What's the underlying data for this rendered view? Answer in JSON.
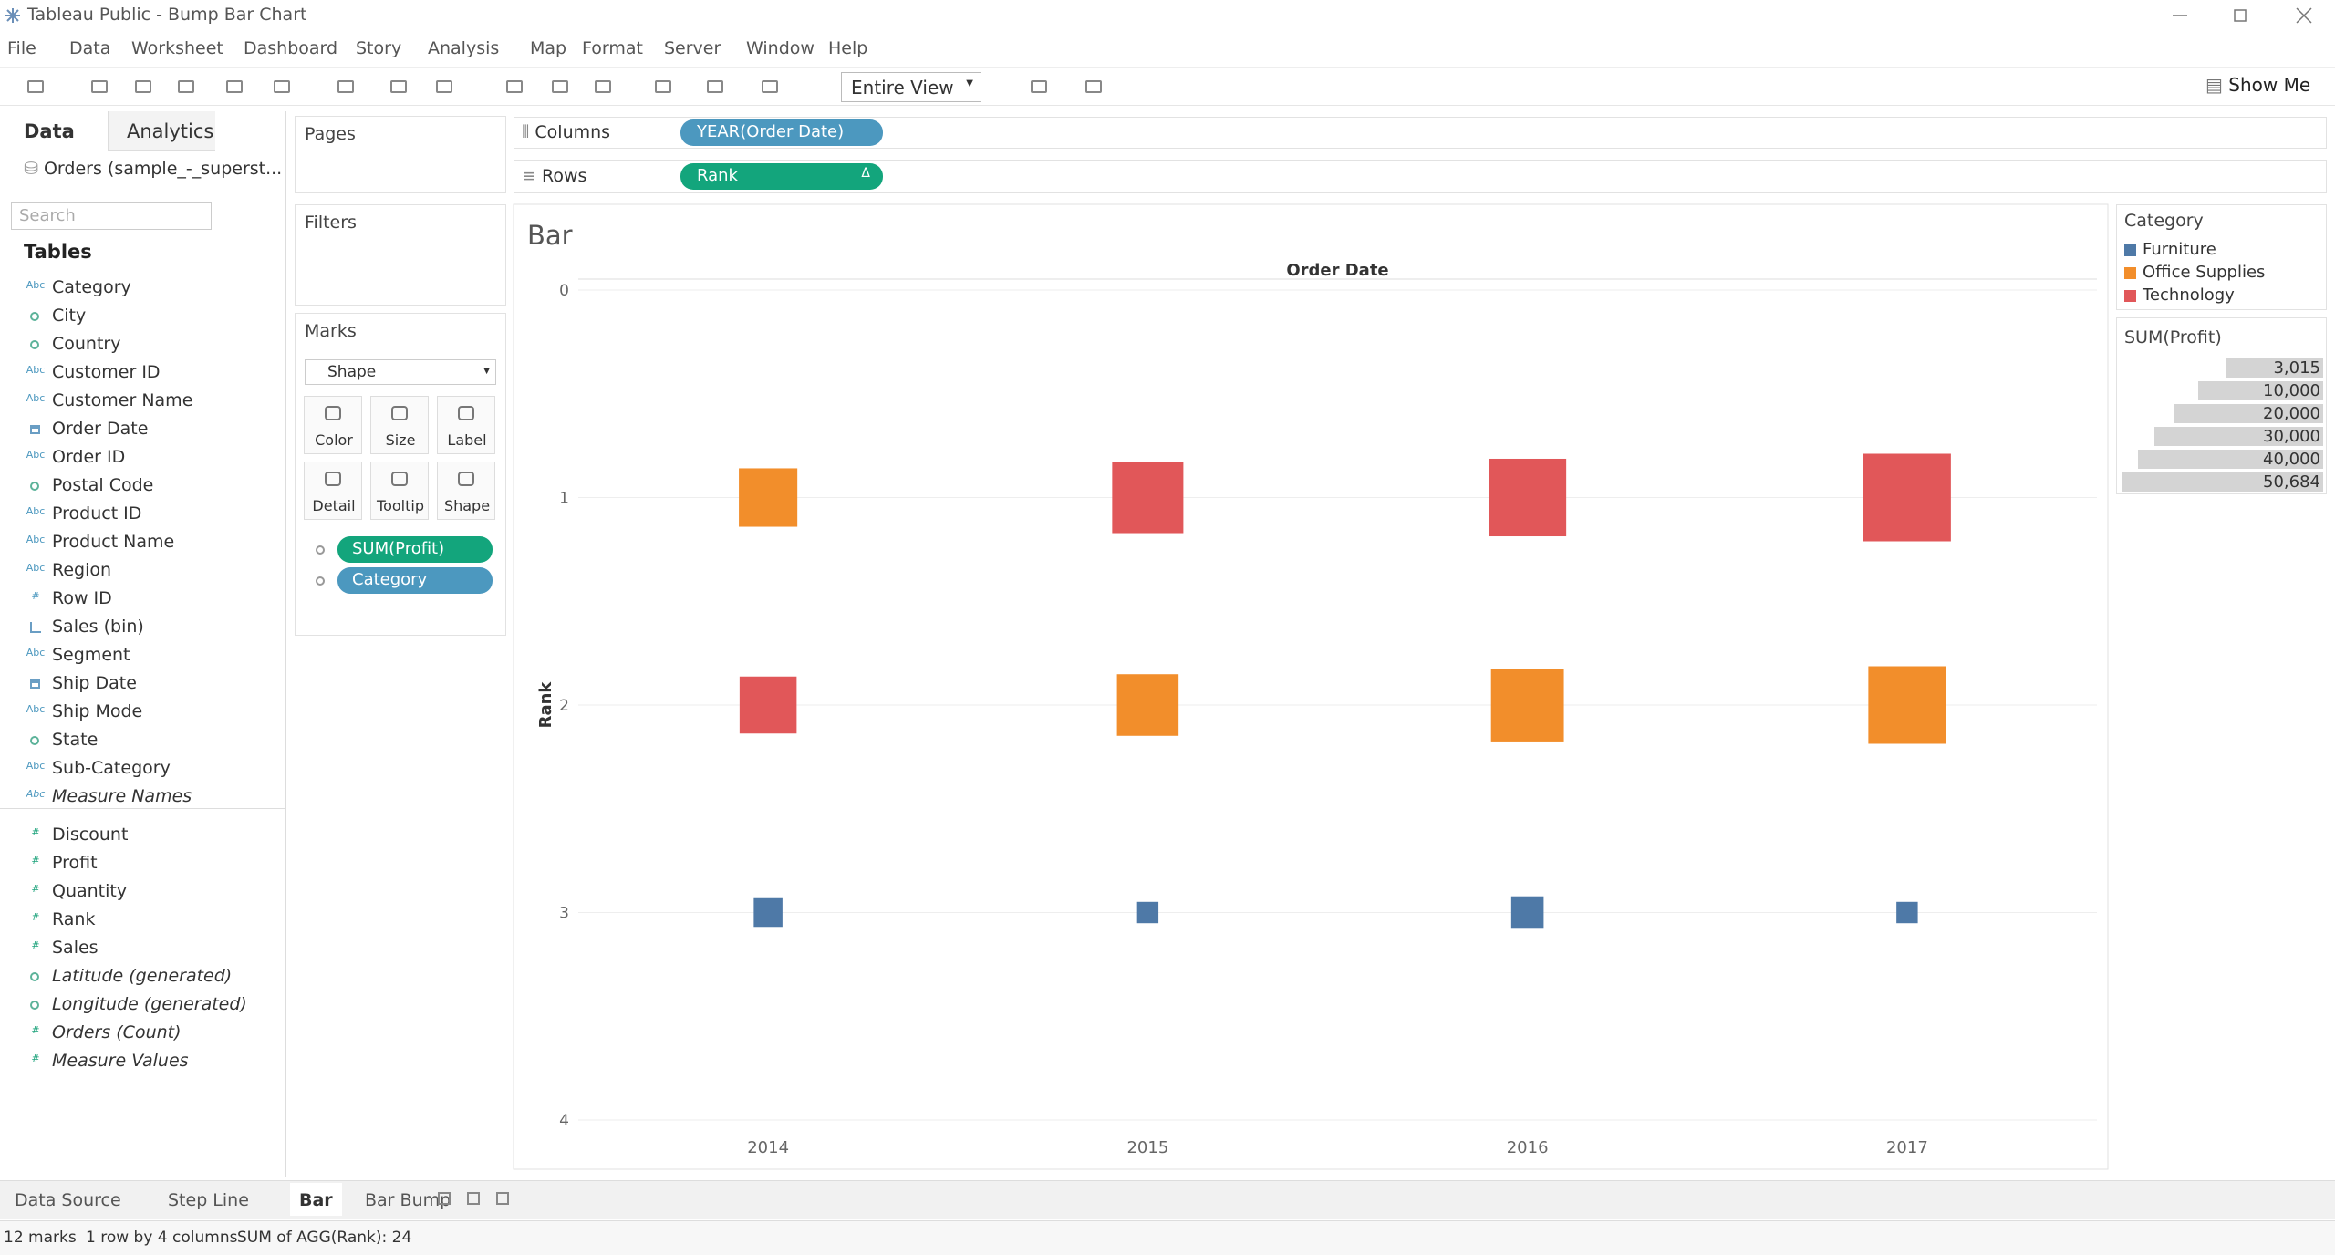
{
  "window": {
    "title": "Tableau Public - Bump Bar Chart",
    "menu": [
      "File",
      "Data",
      "Worksheet",
      "Dashboard",
      "Story",
      "Analysis",
      "Map",
      "Format",
      "Server",
      "Window",
      "Help"
    ]
  },
  "toolbar": {
    "fit": "Entire View",
    "show_me": "Show Me"
  },
  "data_pane": {
    "tabs": [
      "Data",
      "Analytics"
    ],
    "source": "Orders (sample_-_superst...",
    "search_placeholder": "Search",
    "heading": "Tables",
    "dimensions": [
      {
        "name": "Category",
        "icon": "Abc"
      },
      {
        "name": "City",
        "icon": "geo"
      },
      {
        "name": "Country",
        "icon": "geo"
      },
      {
        "name": "Customer ID",
        "icon": "Abc"
      },
      {
        "name": "Customer Name",
        "icon": "Abc"
      },
      {
        "name": "Order Date",
        "icon": "date"
      },
      {
        "name": "Order ID",
        "icon": "Abc"
      },
      {
        "name": "Postal Code",
        "icon": "geo"
      },
      {
        "name": "Product ID",
        "icon": "Abc"
      },
      {
        "name": "Product Name",
        "icon": "Abc"
      },
      {
        "name": "Region",
        "icon": "Abc"
      },
      {
        "name": "Row ID",
        "icon": "#"
      },
      {
        "name": "Sales (bin)",
        "icon": "bin"
      },
      {
        "name": "Segment",
        "icon": "Abc"
      },
      {
        "name": "Ship Date",
        "icon": "date"
      },
      {
        "name": "Ship Mode",
        "icon": "Abc"
      },
      {
        "name": "State",
        "icon": "geo"
      },
      {
        "name": "Sub-Category",
        "icon": "Abc"
      },
      {
        "name": "Measure Names",
        "icon": "Abc",
        "italic": true
      }
    ],
    "measures": [
      {
        "name": "Discount",
        "icon": "#"
      },
      {
        "name": "Profit",
        "icon": "#"
      },
      {
        "name": "Quantity",
        "icon": "#"
      },
      {
        "name": "Rank",
        "icon": "#"
      },
      {
        "name": "Sales",
        "icon": "#"
      },
      {
        "name": "Latitude (generated)",
        "icon": "geo",
        "italic": true
      },
      {
        "name": "Longitude (generated)",
        "icon": "geo",
        "italic": true
      },
      {
        "name": "Orders (Count)",
        "icon": "#",
        "italic": true
      },
      {
        "name": "Measure Values",
        "icon": "#",
        "italic": true
      }
    ]
  },
  "shelves": {
    "pages": "Pages",
    "filters": "Filters",
    "columns": {
      "label": "Columns",
      "pill": "YEAR(Order Date)",
      "color": "#4c98bf"
    },
    "rows": {
      "label": "Rows",
      "pill": "Rank",
      "flag": "Δ",
      "color": "#13a57c"
    }
  },
  "marks_card": {
    "title": "Marks",
    "mark_type": "Shape",
    "buttons": [
      "Color",
      "Size",
      "Label",
      "Detail",
      "Tooltip",
      "Shape"
    ],
    "pills": [
      {
        "name": "SUM(Profit)",
        "color": "#13a57c"
      },
      {
        "name": "Category",
        "color": "#4c98bf"
      }
    ]
  },
  "chart_data": {
    "type": "bump-bar",
    "title": "Bar",
    "x_title": "Order Date",
    "y_title": "Rank",
    "categories": [
      "2014",
      "2015",
      "2016",
      "2017"
    ],
    "ylim": [
      0,
      4
    ],
    "yticks": [
      0,
      1,
      2,
      3,
      4
    ],
    "grid": true,
    "series": [
      {
        "name": "Furniture",
        "color": "#4e79a7",
        "values": [
          3,
          3,
          3,
          3
        ],
        "sizes": [
          5458,
          3015,
          6960,
          3018
        ]
      },
      {
        "name": "Office Supplies",
        "color": "#f28e2b",
        "values": [
          1,
          2,
          2,
          2
        ],
        "sizes": [
          22593,
          25099,
          35062,
          39736
        ]
      },
      {
        "name": "Technology",
        "color": "#e15759",
        "values": [
          2,
          1,
          1,
          1
        ],
        "sizes": [
          21493,
          33503,
          39773,
          50684
        ]
      }
    ]
  },
  "legends": {
    "color_title": "Category",
    "size": {
      "title": "SUM(Profit)",
      "items": [
        {
          "value": 3015,
          "label": "3,015"
        },
        {
          "value": 10000,
          "label": "10,000"
        },
        {
          "value": 20000,
          "label": "20,000"
        },
        {
          "value": 30000,
          "label": "30,000"
        },
        {
          "value": 40000,
          "label": "40,000"
        },
        {
          "value": 50684,
          "label": "50,684"
        }
      ]
    }
  },
  "sheet_tabs": {
    "tabs": [
      "Data Source",
      "Step Line",
      "Bar",
      "Bar Bump"
    ],
    "active": 2
  },
  "status": {
    "marks": "12 marks",
    "layout": "1 row by 4 columns",
    "sum": "SUM of AGG(Rank): 24"
  }
}
